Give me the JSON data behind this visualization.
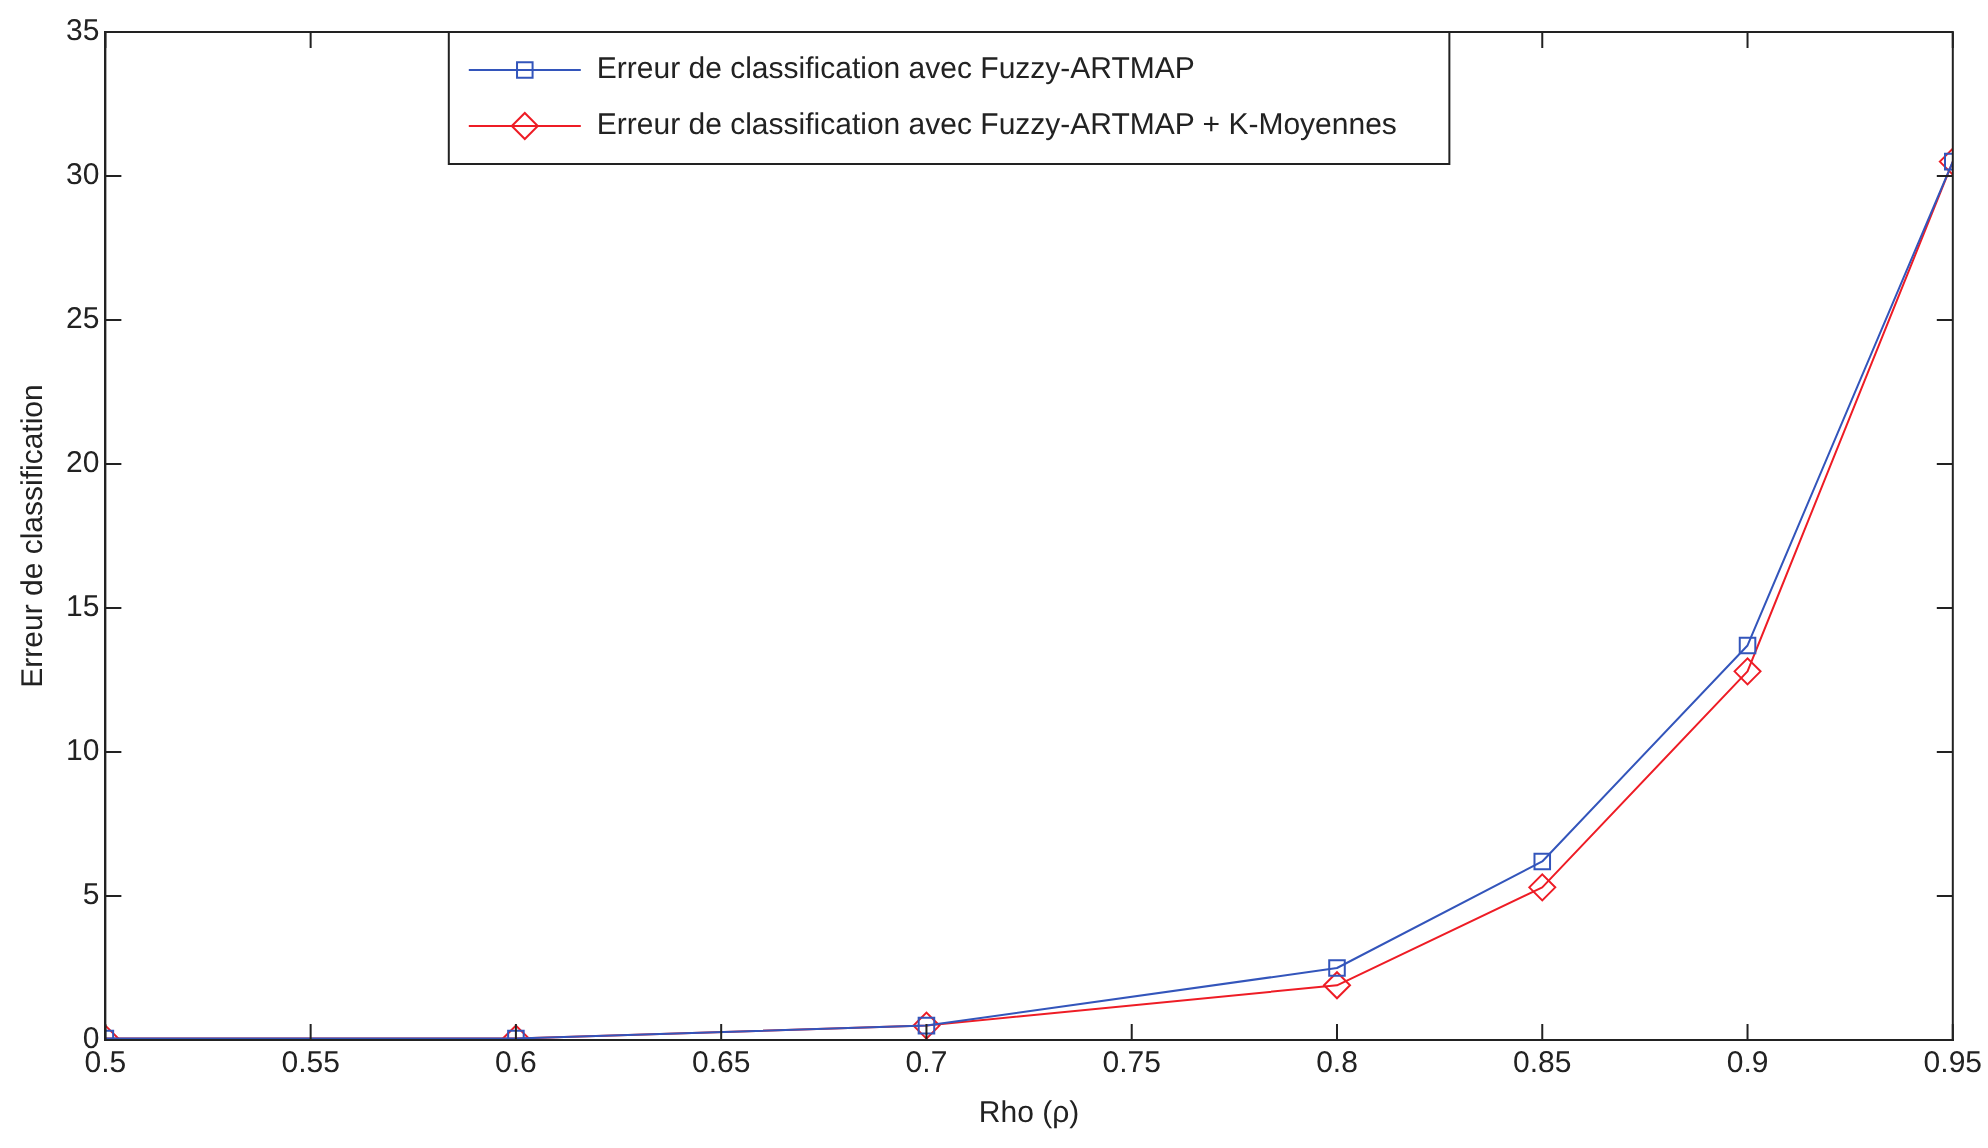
{
  "chart_data": {
    "type": "line",
    "xlabel": "Rho (ρ)",
    "ylabel": "Erreur de classification",
    "x": [
      0.5,
      0.6,
      0.7,
      0.8,
      0.85,
      0.9,
      0.95
    ],
    "series": [
      {
        "name": "Erreur de classification avec Fuzzy-ARTMAP",
        "color": "#3355bb",
        "marker": "square",
        "values": [
          0.05,
          0.05,
          0.5,
          2.5,
          6.2,
          13.7,
          30.5
        ]
      },
      {
        "name": "Erreur de classification avec Fuzzy-ARTMAP + K-Moyennes",
        "color": "#ee1c25",
        "marker": "diamond",
        "values": [
          0.05,
          0.05,
          0.5,
          1.9,
          5.3,
          12.8,
          30.5
        ]
      }
    ],
    "xlim": [
      0.5,
      0.95
    ],
    "xticks": [
      0.5,
      0.55,
      0.6,
      0.65,
      0.7,
      0.75,
      0.8,
      0.85,
      0.9,
      0.95
    ],
    "ylim": [
      0,
      35
    ],
    "yticks": [
      0,
      5,
      10,
      15,
      20,
      25,
      30,
      35
    ],
    "grid": false,
    "legend": "top",
    "line_style": "solid"
  }
}
